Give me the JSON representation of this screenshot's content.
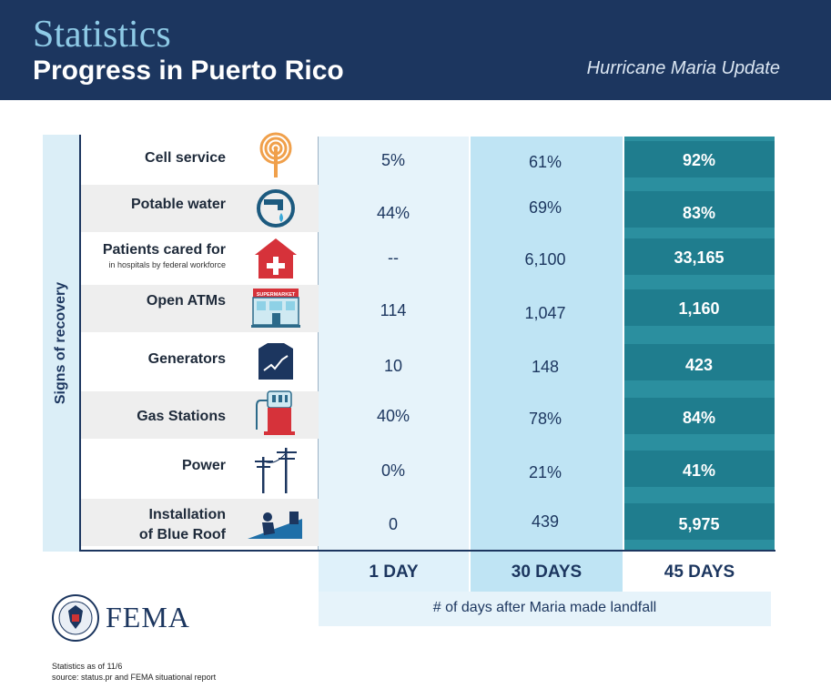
{
  "header": {
    "title": "Statistics",
    "subtitle": "Progress in Puerto Rico",
    "right_text": "Hurricane Maria Update"
  },
  "side_label": "Signs of recovery",
  "columns": [
    "1 DAY",
    "30 DAYS",
    "45 DAYS"
  ],
  "caption": "# of days after Maria made landfall",
  "rows": [
    {
      "label": "Cell service",
      "sublabel": "",
      "icon": "cell-tower-icon",
      "values": [
        "5%",
        "61%",
        "92%"
      ]
    },
    {
      "label": "Potable water",
      "sublabel": "",
      "icon": "water-faucet-icon",
      "values": [
        "44%",
        "69%",
        "83%"
      ]
    },
    {
      "label": "Patients cared for",
      "sublabel": "in hospitals by federal workforce",
      "icon": "hospital-icon",
      "values": [
        "--",
        "6,100",
        "33,165"
      ]
    },
    {
      "label": "Open ATMs",
      "sublabel": "",
      "icon": "supermarket-icon",
      "values": [
        "114",
        "1,047",
        "1,160"
      ]
    },
    {
      "label": "Generators",
      "sublabel": "",
      "icon": "generator-icon",
      "values": [
        "10",
        "148",
        "423"
      ]
    },
    {
      "label": "Gas Stations",
      "sublabel": "",
      "icon": "gas-pump-icon",
      "values": [
        "40%",
        "78%",
        "84%"
      ]
    },
    {
      "label": "Power",
      "sublabel": "",
      "icon": "power-pole-icon",
      "values": [
        "0%",
        "21%",
        "41%"
      ]
    },
    {
      "label": "Installation\nof Blue Roof",
      "sublabel": "",
      "icon": "blue-roof-icon",
      "values": [
        "0",
        "439",
        "5,975"
      ]
    }
  ],
  "supermarket_sign": "SUPERMARKET",
  "logo": {
    "text": "FEMA"
  },
  "footer": {
    "note1": "Statistics as of 11/6",
    "note2": "source: status.pr and FEMA situational report"
  }
}
